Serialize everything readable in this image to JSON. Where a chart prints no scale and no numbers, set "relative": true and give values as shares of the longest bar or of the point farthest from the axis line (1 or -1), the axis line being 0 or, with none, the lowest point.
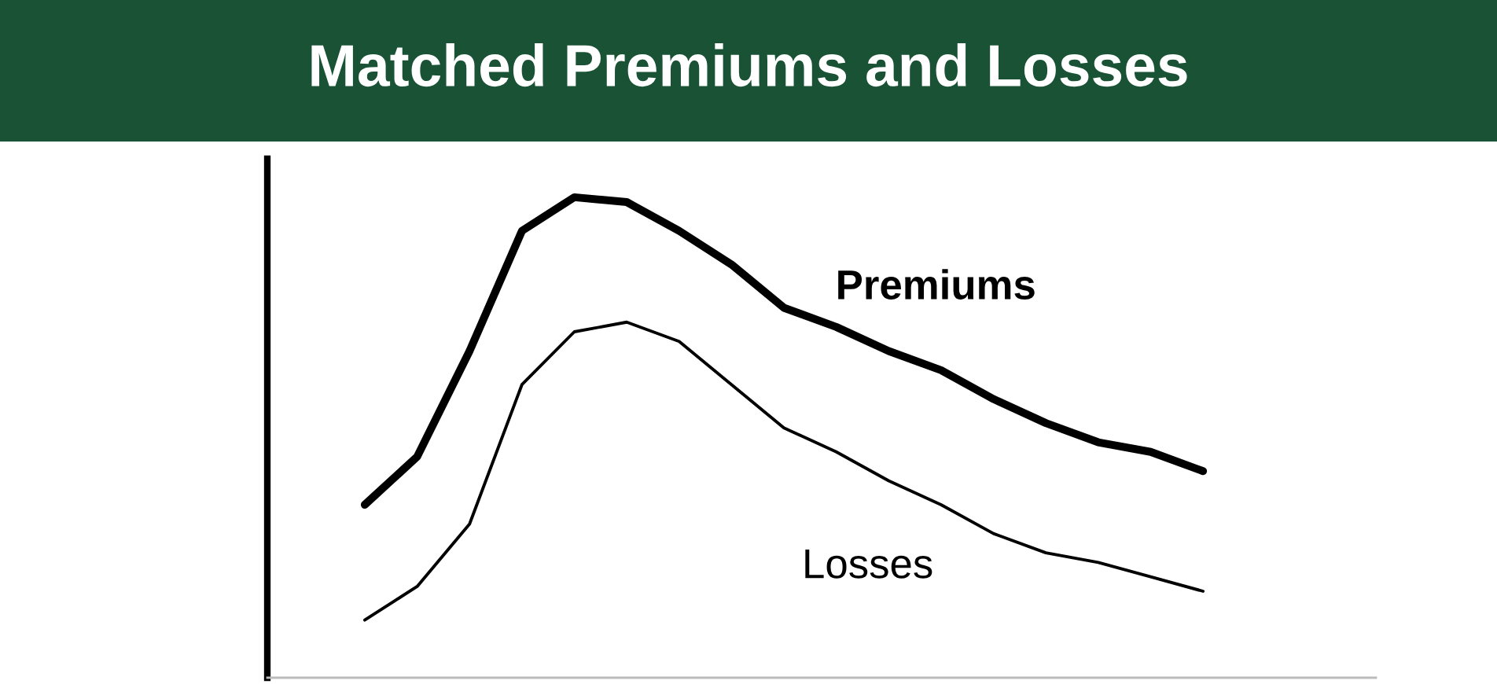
{
  "chart_data": {
    "type": "line",
    "title": "Matched Premiums and Losses",
    "relative": true,
    "legend": false,
    "marker": "none",
    "line_style": "solid",
    "categories": [
      null,
      null,
      null,
      null,
      null,
      null,
      null,
      null,
      null,
      null,
      null,
      null,
      null,
      null,
      null,
      null,
      null
    ],
    "series": [
      {
        "name": "Premiums",
        "color": "#000000",
        "values": [
          0.36,
          0.46,
          0.68,
          0.93,
          1.0,
          0.99,
          0.93,
          0.86,
          0.77,
          0.73,
          0.68,
          0.64,
          0.58,
          0.53,
          0.49,
          0.47,
          0.43
        ]
      },
      {
        "name": "Losses",
        "color": "#000000",
        "values": [
          0.12,
          0.19,
          0.32,
          0.61,
          0.72,
          0.74,
          0.7,
          0.61,
          0.52,
          0.47,
          0.41,
          0.36,
          0.3,
          0.26,
          0.24,
          0.21,
          0.18
        ]
      }
    ]
  }
}
